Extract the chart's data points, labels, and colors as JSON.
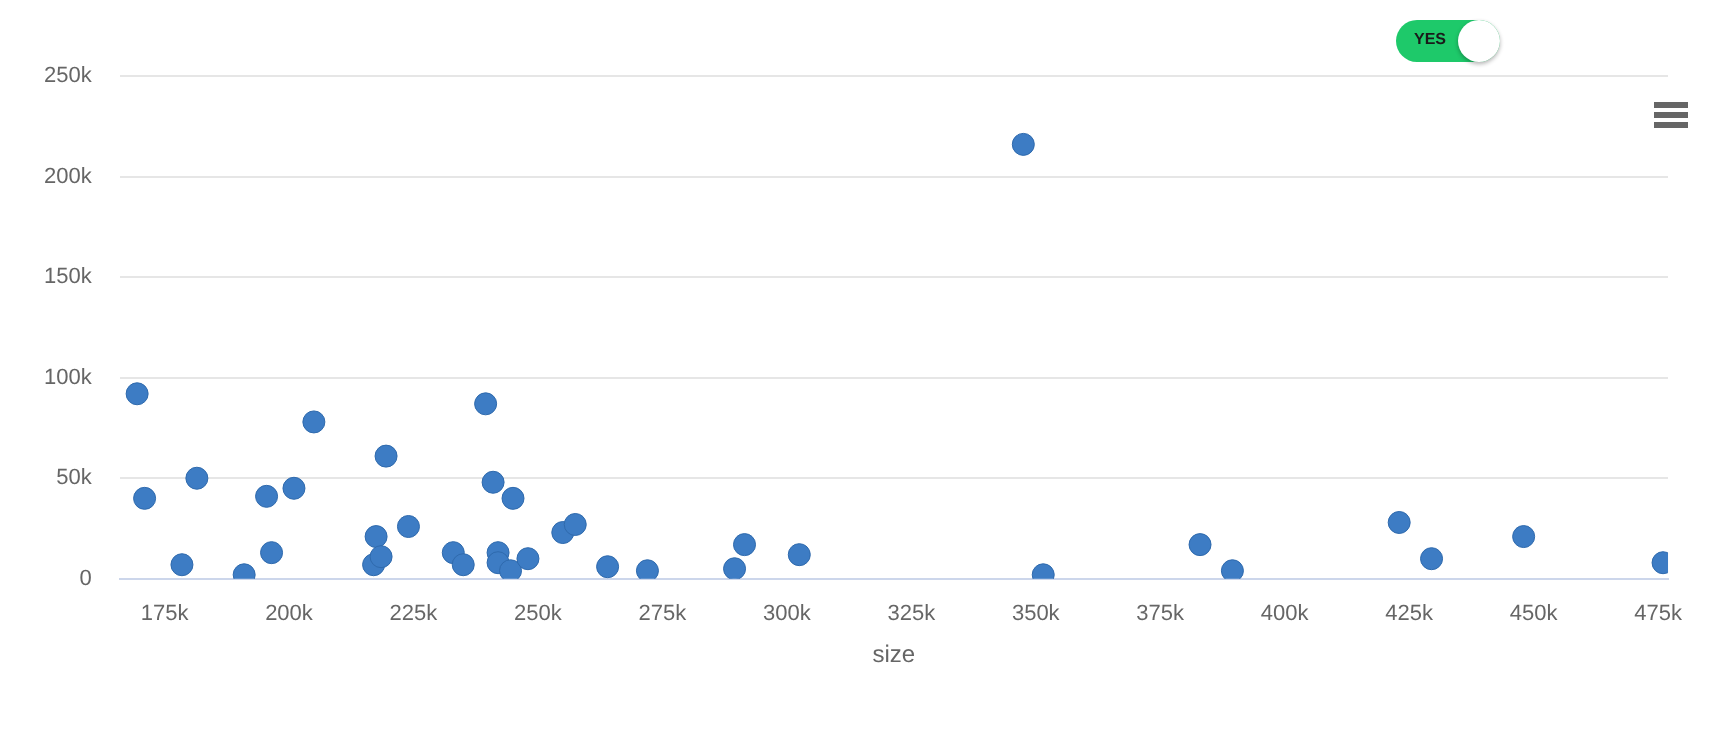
{
  "chart_data": {
    "type": "scatter",
    "xlabel": "size",
    "annotations": [
      "YES"
    ],
    "marker": "circle",
    "grid": "y",
    "legend": false,
    "xlim": [
      166000,
      477000
    ],
    "ylim": [
      0,
      250000
    ],
    "xticks": [
      {
        "value": 175000,
        "label": "175k"
      },
      {
        "value": 200000,
        "label": "200k"
      },
      {
        "value": 225000,
        "label": "225k"
      },
      {
        "value": 250000,
        "label": "250k"
      },
      {
        "value": 275000,
        "label": "275k"
      },
      {
        "value": 300000,
        "label": "300k"
      },
      {
        "value": 325000,
        "label": "325k"
      },
      {
        "value": 350000,
        "label": "350k"
      },
      {
        "value": 375000,
        "label": "375k"
      },
      {
        "value": 400000,
        "label": "400k"
      },
      {
        "value": 425000,
        "label": "425k"
      },
      {
        "value": 450000,
        "label": "450k"
      },
      {
        "value": 475000,
        "label": "475k"
      }
    ],
    "yticks": [
      {
        "value": 0,
        "label": "0"
      },
      {
        "value": 50000,
        "label": "50k"
      },
      {
        "value": 100000,
        "label": "100k"
      },
      {
        "value": 150000,
        "label": "150k"
      },
      {
        "value": 200000,
        "label": "200k"
      },
      {
        "value": 250000,
        "label": "250k"
      }
    ],
    "series": [
      {
        "color": "#3d7cc4",
        "x": [
          169500,
          171000,
          178500,
          181500,
          191000,
          195500,
          196500,
          201000,
          205000,
          217000,
          217500,
          218500,
          219500,
          224000,
          233000,
          235000,
          239500,
          241000,
          242000,
          242000,
          244500,
          245000,
          248000,
          255000,
          257500,
          264000,
          272000,
          289500,
          291500,
          302500,
          347500,
          351500,
          383000,
          389500,
          423000,
          429500,
          448000,
          476000
        ],
        "values": [
          92000,
          40000,
          7000,
          50000,
          2000,
          41000,
          13000,
          45000,
          78000,
          7000,
          21000,
          11000,
          61000,
          26000,
          13000,
          7000,
          87000,
          48000,
          13000,
          8000,
          4000,
          40000,
          10000,
          23000,
          27000,
          6000,
          4000,
          5000,
          17000,
          12000,
          216000,
          2000,
          17000,
          4000,
          28000,
          10000,
          21000,
          8000
        ]
      }
    ]
  }
}
